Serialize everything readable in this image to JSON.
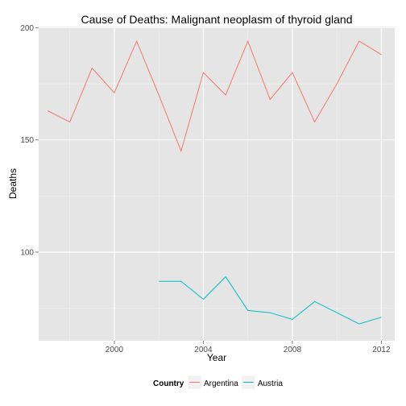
{
  "chart_data": {
    "type": "line",
    "title": "Cause of Deaths: Malignant neoplasm of thyroid gland",
    "xlabel": "Year",
    "ylabel": "Deaths",
    "xlim": [
      1996.6,
      2012.6
    ],
    "ylim": [
      60.5,
      200.5
    ],
    "x_ticks": [
      2000,
      2004,
      2008,
      2012
    ],
    "y_ticks": [
      100,
      150,
      200
    ],
    "grid": true,
    "legend": {
      "title": "Country",
      "position": "bottom"
    },
    "series": [
      {
        "name": "Argentina",
        "color": "#F8766D",
        "x": [
          1997,
          1998,
          1999,
          2000,
          2001,
          2002,
          2003,
          2004,
          2005,
          2006,
          2007,
          2008,
          2009,
          2010,
          2011,
          2012
        ],
        "y": [
          163,
          158,
          182,
          171,
          194,
          170,
          145,
          180,
          170,
          194,
          168,
          180,
          158,
          175,
          194,
          188
        ]
      },
      {
        "name": "Austria",
        "color": "#00BFC4",
        "x": [
          2002,
          2003,
          2004,
          2005,
          2006,
          2007,
          2008,
          2009,
          2010,
          2011,
          2012
        ],
        "y": [
          87,
          87,
          79,
          89,
          74,
          73,
          70,
          78,
          73,
          68,
          71
        ]
      }
    ]
  }
}
